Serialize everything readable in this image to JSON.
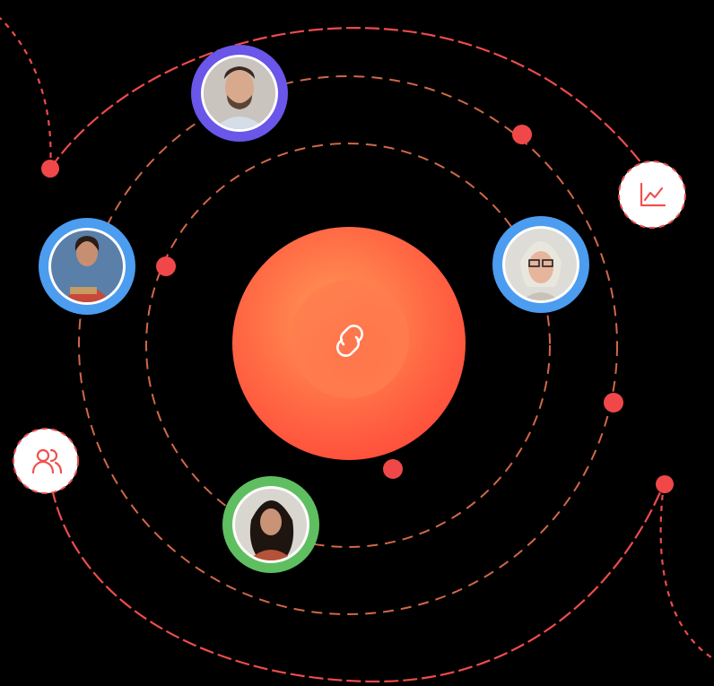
{
  "colors": {
    "background": "#000000",
    "orbit_dash": "#e8734f",
    "arrow_line": "#ef4b4b",
    "node_dot": "#f04848",
    "core_gradient_start": "#ff8a4c",
    "core_gradient_end": "#ff4a3a",
    "icon_bg": "#ffffff",
    "icon_stroke": "#f05050"
  },
  "center": {
    "icon": "link-icon"
  },
  "avatars": [
    {
      "id": "man-top",
      "ring_color": "#6a56e8",
      "description_icon": "avatar"
    },
    {
      "id": "woman-left",
      "ring_color": "#4c9cf0",
      "description_icon": "avatar"
    },
    {
      "id": "woman-right",
      "ring_color": "#4c9cf0",
      "description_icon": "avatar"
    },
    {
      "id": "woman-bottom",
      "ring_color": "#5fbf60",
      "description_icon": "avatar"
    }
  ],
  "badges": [
    {
      "icon": "chart-line-icon"
    },
    {
      "icon": "users-icon"
    }
  ]
}
